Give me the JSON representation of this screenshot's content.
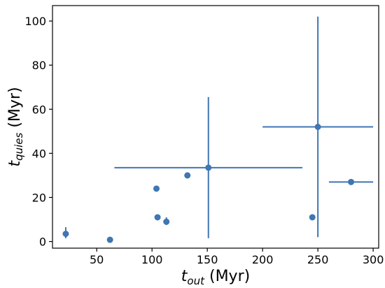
{
  "chart_data": {
    "type": "scatter",
    "title": "",
    "x_axis": {
      "label_main": "t",
      "label_sub": "out",
      "label_unit": " (Myr)",
      "lim": [
        10,
        305
      ],
      "ticks": [
        50,
        100,
        150,
        200,
        250,
        300
      ],
      "tick_labels": [
        "50",
        "100",
        "150",
        "200",
        "250",
        "300"
      ]
    },
    "y_axis": {
      "label_main": "t",
      "label_sub": "quies",
      "label_unit": " (Myr)",
      "lim": [
        -3,
        107
      ],
      "ticks": [
        0,
        20,
        40,
        60,
        80,
        100
      ],
      "tick_labels": [
        "0",
        "20",
        "40",
        "60",
        "80",
        "100"
      ]
    },
    "grid": false,
    "legend": "none",
    "marker_color": "#3f76b4",
    "points": [
      {
        "x": 22,
        "y": 3.5,
        "xerr": [
          0,
          0
        ],
        "yerr": [
          2,
          3
        ]
      },
      {
        "x": 62,
        "y": 0.8,
        "xerr": [
          0,
          0
        ],
        "yerr": [
          0,
          0
        ]
      },
      {
        "x": 104,
        "y": 24,
        "xerr": [
          0,
          0
        ],
        "yerr": [
          0,
          0
        ]
      },
      {
        "x": 105,
        "y": 11,
        "xerr": [
          0,
          0
        ],
        "yerr": [
          0,
          0
        ]
      },
      {
        "x": 113,
        "y": 9,
        "xerr": [
          0,
          0
        ],
        "yerr": [
          1.5,
          2
        ]
      },
      {
        "x": 132,
        "y": 30,
        "xerr": [
          0,
          0
        ],
        "yerr": [
          0,
          0
        ]
      },
      {
        "x": 151,
        "y": 33.5,
        "xerr": [
          85,
          85
        ],
        "yerr": [
          32,
          32
        ]
      },
      {
        "x": 245,
        "y": 11,
        "xerr": [
          0,
          0
        ],
        "yerr": [
          0,
          0
        ]
      },
      {
        "x": 250,
        "y": 52,
        "xerr": [
          50,
          50
        ],
        "yerr": [
          50,
          50
        ]
      },
      {
        "x": 280,
        "y": 27,
        "xerr": [
          20,
          20
        ],
        "yerr": [
          0,
          0
        ]
      }
    ]
  }
}
